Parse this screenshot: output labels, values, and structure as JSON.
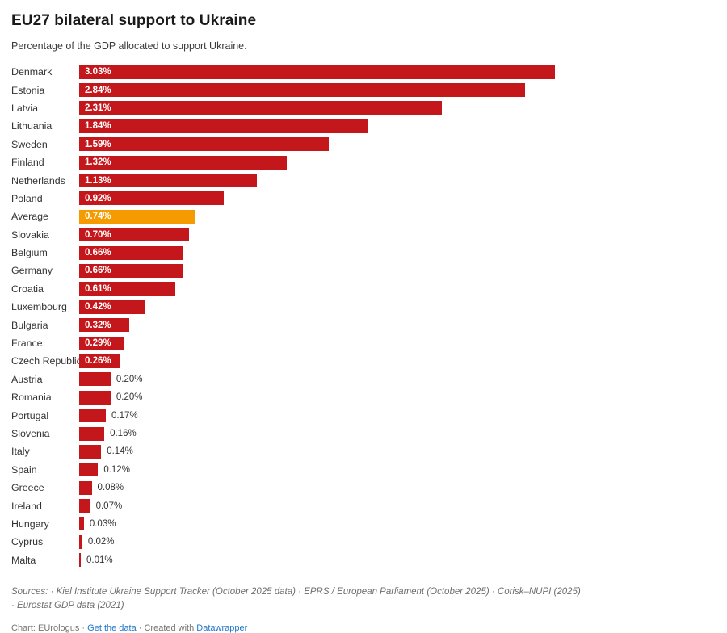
{
  "title": "EU27 bilateral support to Ukraine",
  "subtitle": "Percentage of the GDP allocated to support Ukraine.",
  "chart_data": {
    "type": "bar",
    "orientation": "horizontal",
    "title": "EU27 bilateral support to Ukraine",
    "subtitle": "Percentage of the GDP allocated to support Ukraine.",
    "xlabel": "",
    "ylabel": "",
    "xlim": [
      0,
      3.03
    ],
    "grid": false,
    "legend": false,
    "categories": [
      "Denmark",
      "Estonia",
      "Latvia",
      "Lithuania",
      "Sweden",
      "Finland",
      "Netherlands",
      "Poland",
      "Average",
      "Slovakia",
      "Belgium",
      "Germany",
      "Croatia",
      "Luxembourg",
      "Bulgaria",
      "France",
      "Czech Republic",
      "Austria",
      "Romania",
      "Portugal",
      "Slovenia",
      "Italy",
      "Spain",
      "Greece",
      "Ireland",
      "Hungary",
      "Cyprus",
      "Malta"
    ],
    "values": [
      3.03,
      2.84,
      2.31,
      1.84,
      1.59,
      1.32,
      1.13,
      0.92,
      0.74,
      0.7,
      0.66,
      0.66,
      0.61,
      0.42,
      0.32,
      0.29,
      0.26,
      0.2,
      0.2,
      0.17,
      0.16,
      0.14,
      0.12,
      0.08,
      0.07,
      0.03,
      0.02,
      0.01
    ],
    "labels": [
      "3.03%",
      "2.84%",
      "2.31%",
      "1.84%",
      "1.59%",
      "1.32%",
      "1.13%",
      "0.92%",
      "0.74%",
      "0.70%",
      "0.66%",
      "0.66%",
      "0.61%",
      "0.42%",
      "0.32%",
      "0.29%",
      "0.26%",
      "0.20%",
      "0.20%",
      "0.17%",
      "0.16%",
      "0.14%",
      "0.12%",
      "0.08%",
      "0.07%",
      "0.03%",
      "0.02%",
      "0.01%"
    ],
    "highlight_category": "Average",
    "highlight_index": 8,
    "bar_color": "#c4171c",
    "highlight_color": "#f59b00",
    "inside_label_min": 0.26,
    "inside_label_color": "#ffffff",
    "outside_label_color": "#333333"
  },
  "footer": {
    "sources_line1": "Sources: · Kiel Institute Ukraine Support Tracker (October 2025 data) · EPRS / European Parliament (October 2025) · Corisk–NUPI (2025)",
    "sources_line2": "· Eurostat GDP data (2021)",
    "chart_credit": "Chart: EUrologus",
    "sep": " · ",
    "get_data_label": "Get the data",
    "created_with": "Created with ",
    "datawrapper_label": "Datawrapper",
    "link_color": "#2279c9"
  }
}
